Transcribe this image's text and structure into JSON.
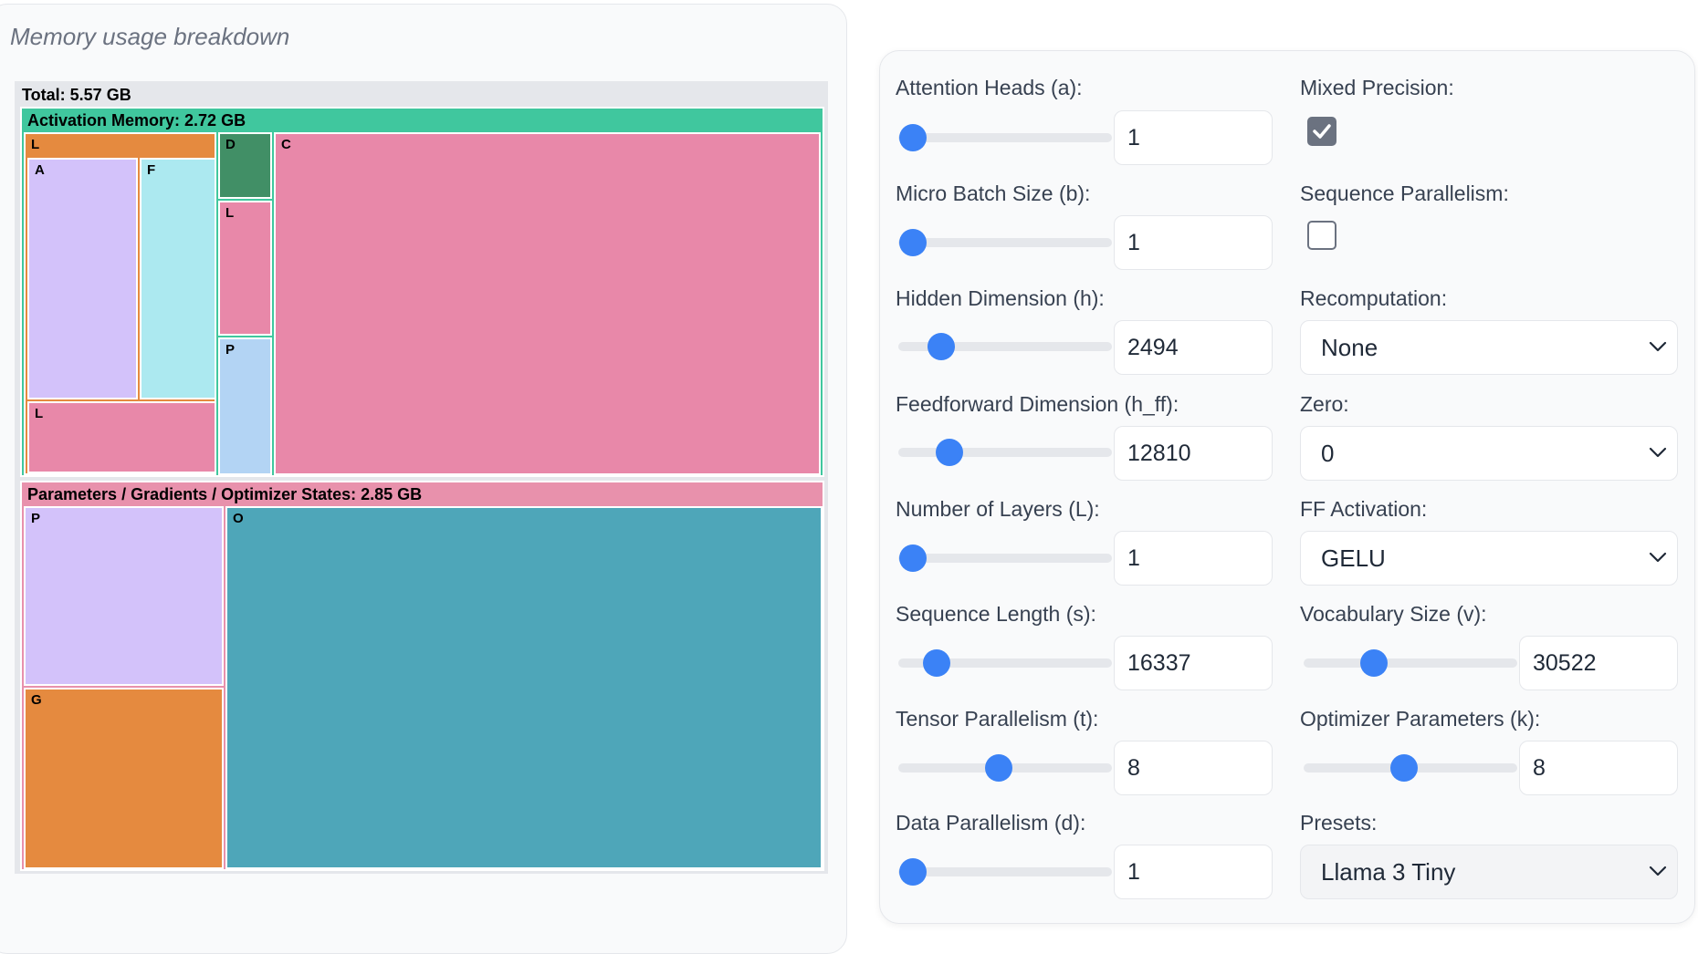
{
  "memory_panel": {
    "title": "Memory usage breakdown",
    "total_label": "Total: 5.57 GB",
    "activation_label": "Activation Memory: 2.72 GB",
    "activation_cells": [
      "L",
      "A",
      "F",
      "L",
      "D",
      "L",
      "P",
      "C"
    ],
    "params_label": "Parameters / Gradients / Optimizer States: 2.85 GB",
    "params_cells": [
      "P",
      "G",
      "O"
    ],
    "colors": {
      "root": "#e5e7eb",
      "activation": "#40c79e",
      "param_group": "#e891ac",
      "orange": "#e58a3f",
      "lavender": "#d3c2fa",
      "light_cyan": "#ace9f0",
      "pink": "#e888a9",
      "dark_green": "#418f66",
      "light_blue": "#b3d4f4",
      "teal": "#4ea6b9"
    }
  },
  "controls": {
    "attention_heads": {
      "label": "Attention Heads (a):",
      "value": "1",
      "slider_fraction": 0.07
    },
    "micro_batch": {
      "label": "Micro Batch Size (b):",
      "value": "1",
      "slider_fraction": 0.07
    },
    "hidden_dim": {
      "label": "Hidden Dimension (h):",
      "value": "2494",
      "slider_fraction": 0.2
    },
    "ff_dim": {
      "label": "Feedforward Dimension (h_ff):",
      "value": "12810",
      "slider_fraction": 0.24
    },
    "num_layers": {
      "label": "Number of Layers (L):",
      "value": "1",
      "slider_fraction": 0.07
    },
    "seq_length": {
      "label": "Sequence Length (s):",
      "value": "16337",
      "slider_fraction": 0.18
    },
    "tensor_parallel": {
      "label": "Tensor Parallelism (t):",
      "value": "8",
      "slider_fraction": 0.47
    },
    "data_parallel": {
      "label": "Data Parallelism (d):",
      "value": "1",
      "slider_fraction": 0.07
    },
    "mixed_precision": {
      "label": "Mixed Precision:",
      "checked": true
    },
    "sequence_parallel": {
      "label": "Sequence Parallelism:",
      "checked": false
    },
    "recomputation": {
      "label": "Recomputation:",
      "value": "None"
    },
    "zero": {
      "label": "Zero:",
      "value": "0"
    },
    "ff_activation": {
      "label": "FF Activation:",
      "value": "GELU"
    },
    "vocab_size": {
      "label": "Vocabulary Size (v):",
      "value": "30522",
      "slider_fraction": 0.33
    },
    "optimizer_params": {
      "label": "Optimizer Parameters (k):",
      "value": "8",
      "slider_fraction": 0.47
    },
    "presets": {
      "label": "Presets:",
      "value": "Llama 3 Tiny"
    },
    "accent_color": "#3b82f6"
  }
}
